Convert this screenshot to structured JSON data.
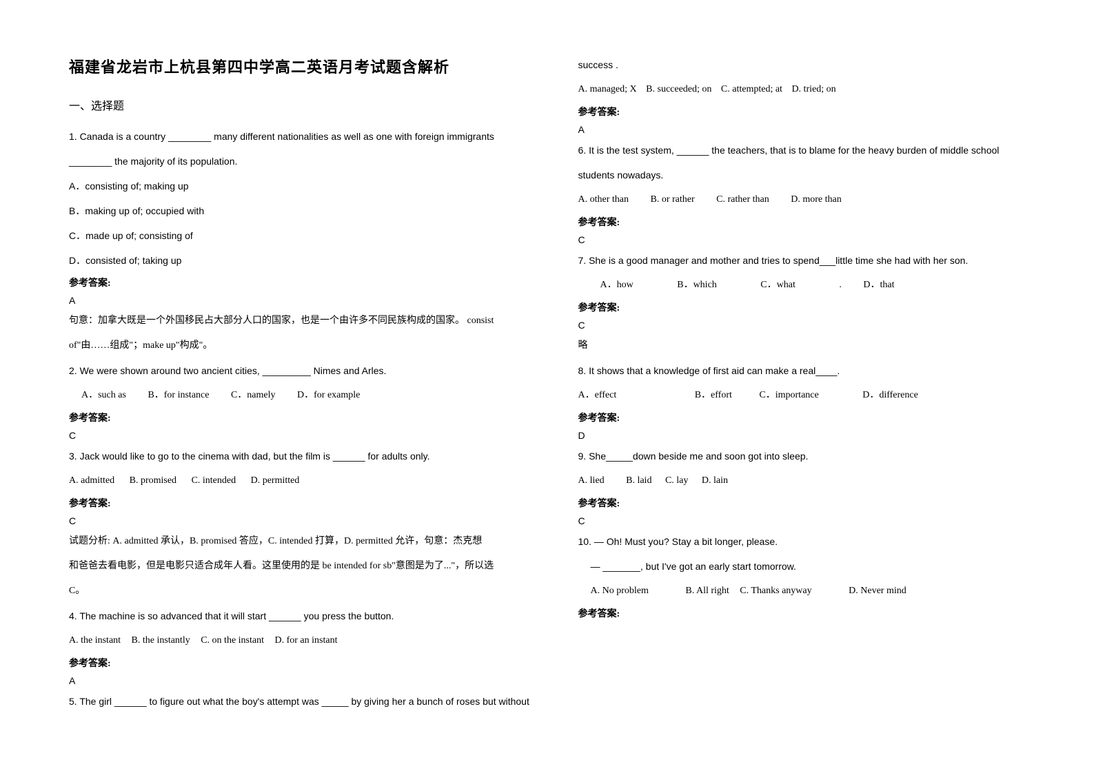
{
  "title": "福建省龙岩市上杭县第四中学高二英语月考试题含解析",
  "section1": "一、选择题",
  "ansLabel": "参考答案:",
  "q1": {
    "line1": "1. Canada is a country ________ many different nationalities as well as one with foreign immigrants",
    "line2": "________ the majority of its population.",
    "a": "A．consisting of; making up",
    "b": "B．making up of; occupied with",
    "c": "C．made up of; consisting of",
    "d": "D．consisted of; taking up",
    "ans": "A",
    "exp1": "句意：加拿大既是一个外国移民占大部分人口的国家，也是一个由许多不同民族构成的国家。 consist",
    "exp2": "of\"由……组成\"；make up\"构成\"。"
  },
  "q2": {
    "text": "2. We were shown around two ancient cities, _________ Nimes and Arles.",
    "a": "A．such as",
    "b": "B．for instance",
    "c": "C．namely",
    "d": "D．for example",
    "ans": "C"
  },
  "q3": {
    "text": "3. Jack would like to go to the cinema with dad, but the film is ______ for adults only.",
    "a": "A. admitted",
    "b": "B. promised",
    "c": "C. intended",
    "d": "D. permitted",
    "ans": "C",
    "exp1": "试题分析: A. admitted 承认，B. promised 答应，C. intended 打算，D. permitted 允许，句意：杰克想",
    "exp2": "和爸爸去看电影，但是电影只适合成年人看。这里使用的是 be intended for sb\"意图是为了...\"，所以选",
    "exp3": "C。"
  },
  "q4": {
    "text": "4. The machine is so advanced that it will start ______ you press the button.",
    "a": "A. the instant",
    "b": "B. the instantly",
    "c": "C. on the instant",
    "d": "D. for an instant",
    "ans": "A"
  },
  "q5": {
    "text": "5. The girl ______ to figure out what the boy's attempt was _____ by giving her a bunch of roses but without",
    "line2": "success .",
    "a": "A. managed; X",
    "b": "B. succeeded; on",
    "c": "C. attempted; at",
    "d": "D. tried; on",
    "ans": "A"
  },
  "q6": {
    "line1": "6.  It is the test system, ______ the teachers, that is to blame for the heavy burden of middle school",
    "line2": "students nowadays.",
    "a": "A. other than",
    "b": "B. or rather",
    "c": "C. rather than",
    "d": "D. more than",
    "ans": "C"
  },
  "q7": {
    "text": "7. She is a good manager and mother and tries to spend___little time she had with her son.",
    "a": "A．how",
    "b": "B．which",
    "c": "C．what",
    "dot": ".",
    "d": "D．that",
    "ans": "C",
    "extra": "略"
  },
  "q8": {
    "text": "8. It shows that a knowledge of first aid can make a real____.",
    "a": "A．effect",
    "b": "B．effort",
    "c": "C．importance",
    "d": "D．difference",
    "ans": "D"
  },
  "q9": {
    "text": "9. She_____down beside me and soon got into sleep.",
    "a": "A. lied",
    "b": "B. laid",
    "c": "C. lay",
    "d": "D. lain",
    "ans": "C"
  },
  "q10": {
    "line1": "10. — Oh! Must you? Stay a bit longer, please.",
    "line2": "— _______, but I've got an early start tomorrow.",
    "a": "A. No problem",
    "b": "B. All right",
    "c": "C. Thanks anyway",
    "d": "D. Never mind"
  }
}
